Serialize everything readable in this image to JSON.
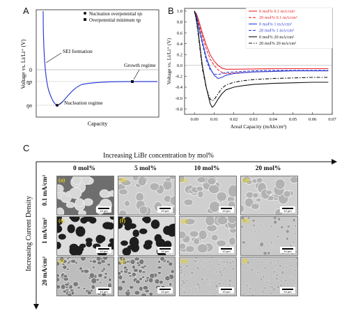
{
  "panelA": {
    "letter": "A",
    "ylabel": "Voltage vs. Li/Li⁺ (V)",
    "xlabel": "Capacity",
    "tick_zero": "0",
    "tick_eta_p": "ηp",
    "tick_eta_n": "ηn",
    "legend": [
      {
        "symbol": "circle",
        "label": "Nucleation overpotential ηn"
      },
      {
        "symbol": "square",
        "label": "Overpotential minimum ηp"
      }
    ],
    "annotations": {
      "sei": "SEI formation",
      "growth": "Growth regime",
      "nucleation": "Nucleation regime"
    },
    "line_color": "#2b3fd6"
  },
  "chart_data": {
    "type": "line",
    "xlabel": "Areal Capacity (mAh/cm²)",
    "ylabel": "Voltage vs. Li/Li⁺ (V)",
    "xlim": [
      -0.005,
      0.07
    ],
    "ylim": [
      -0.9,
      1.05
    ],
    "x_ticks": [
      "0.00",
      "0.01",
      "0.02",
      "0.03",
      "0.04",
      "0.05",
      "0.06",
      "0.07"
    ],
    "y_ticks": [
      "-0.8",
      "-0.6",
      "-0.4",
      "-0.2",
      "0.0",
      "0.2",
      "0.4",
      "0.6",
      "0.8",
      "1.0"
    ],
    "legend_position": "top-right",
    "series": [
      {
        "name": "0 mol% 0.1 mA/cm²",
        "color": "#e8262a",
        "dash": "solid",
        "x": [
          0.0,
          0.001,
          0.002,
          0.004,
          0.006,
          0.008,
          0.01,
          0.012,
          0.014,
          0.016,
          0.02,
          0.03,
          0.04,
          0.05,
          0.06,
          0.068
        ],
        "y": [
          1.0,
          0.95,
          0.85,
          0.6,
          0.38,
          0.2,
          0.08,
          0.0,
          -0.05,
          -0.07,
          -0.07,
          -0.065,
          -0.06,
          -0.06,
          -0.06,
          -0.06
        ]
      },
      {
        "name": "20 mol% 0.1 mA/cm²",
        "color": "#e8262a",
        "dash": "dash",
        "x": [
          0.0,
          0.001,
          0.002,
          0.004,
          0.006,
          0.008,
          0.01,
          0.012,
          0.014,
          0.016,
          0.018,
          0.02,
          0.03,
          0.04,
          0.05,
          0.06,
          0.068
        ],
        "y": [
          1.0,
          0.93,
          0.8,
          0.55,
          0.3,
          0.12,
          0.0,
          -0.08,
          -0.13,
          -0.15,
          -0.15,
          -0.14,
          -0.12,
          -0.11,
          -0.1,
          -0.1,
          -0.1
        ]
      },
      {
        "name": "0 mol% 1 mA/cm²",
        "color": "#2b3fd6",
        "dash": "solid",
        "x": [
          0.0,
          0.001,
          0.002,
          0.004,
          0.006,
          0.008,
          0.01,
          0.012,
          0.014,
          0.016,
          0.02,
          0.03,
          0.04,
          0.05,
          0.06,
          0.068
        ],
        "y": [
          1.0,
          0.92,
          0.75,
          0.45,
          0.15,
          -0.05,
          -0.18,
          -0.24,
          -0.22,
          -0.18,
          -0.15,
          -0.12,
          -0.11,
          -0.1,
          -0.1,
          -0.1
        ]
      },
      {
        "name": "20 mol% 1 mA/cm²",
        "color": "#2b3fd6",
        "dash": "dash",
        "x": [
          0.0,
          0.001,
          0.002,
          0.004,
          0.006,
          0.008,
          0.01,
          0.012,
          0.014,
          0.016,
          0.02,
          0.03,
          0.04,
          0.05,
          0.06,
          0.068
        ],
        "y": [
          1.0,
          0.9,
          0.72,
          0.4,
          0.1,
          -0.08,
          -0.16,
          -0.17,
          -0.15,
          -0.13,
          -0.12,
          -0.1,
          -0.09,
          -0.09,
          -0.09,
          -0.09
        ]
      },
      {
        "name": "0 mol%  20 mA/cm²",
        "color": "#111111",
        "dash": "solid",
        "x": [
          0.0,
          0.001,
          0.002,
          0.003,
          0.004,
          0.006,
          0.008,
          0.009,
          0.01,
          0.012,
          0.014,
          0.016,
          0.02,
          0.025,
          0.03,
          0.04,
          0.05,
          0.06,
          0.068
        ],
        "y": [
          1.0,
          0.85,
          0.6,
          0.3,
          0.0,
          -0.4,
          -0.7,
          -0.77,
          -0.74,
          -0.62,
          -0.52,
          -0.45,
          -0.4,
          -0.37,
          -0.35,
          -0.33,
          -0.32,
          -0.31,
          -0.31
        ]
      },
      {
        "name": "20 mol% 20 mA/cm²",
        "color": "#111111",
        "dash": "dashdot",
        "x": [
          0.0,
          0.001,
          0.002,
          0.003,
          0.004,
          0.006,
          0.008,
          0.009,
          0.01,
          0.012,
          0.014,
          0.016,
          0.02,
          0.025,
          0.03,
          0.04,
          0.05,
          0.06,
          0.068
        ],
        "y": [
          1.0,
          0.82,
          0.55,
          0.25,
          -0.05,
          -0.42,
          -0.62,
          -0.65,
          -0.63,
          -0.52,
          -0.42,
          -0.36,
          -0.31,
          -0.28,
          -0.26,
          -0.24,
          -0.23,
          -0.22,
          -0.22
        ]
      }
    ]
  },
  "panelB": {
    "letter": "B"
  },
  "panelC": {
    "letter": "C",
    "top_label": "Increasing LiBr concentration by mol%",
    "side_label": "Increasing Current Density",
    "columns": [
      "0 mol%",
      "5 mol%",
      "10 mol%",
      "20 mol%"
    ],
    "rows": [
      "0.1 mA/cm²",
      "1 mA/cm²",
      "20 mA/cm²"
    ],
    "tiles": [
      {
        "label": "(a)",
        "scale": "10 μm",
        "tone": "dark-grain"
      },
      {
        "label": "(b)",
        "scale": "10 μm",
        "tone": "light-grain"
      },
      {
        "label": "(c)",
        "scale": "10 μm",
        "tone": "light-grain"
      },
      {
        "label": "(d)",
        "scale": "10 μm",
        "tone": "light-grain"
      },
      {
        "label": "(e)",
        "scale": "10 μm",
        "tone": "dark-blob"
      },
      {
        "label": "(f)",
        "scale": "10 μm",
        "tone": "dark-blob"
      },
      {
        "label": "(g)",
        "scale": "10 μm",
        "tone": "light-grain"
      },
      {
        "label": "(h)",
        "scale": "10 μm",
        "tone": "light-speckle"
      },
      {
        "label": "(i)",
        "scale": "10 μm",
        "tone": "fine-grain"
      },
      {
        "label": "(j)",
        "scale": "10 μm",
        "tone": "fine-grain"
      },
      {
        "label": "(k)",
        "scale": "10 μm",
        "tone": "very-fine"
      },
      {
        "label": "(l)",
        "scale": "10 μm",
        "tone": "very-fine"
      }
    ]
  }
}
